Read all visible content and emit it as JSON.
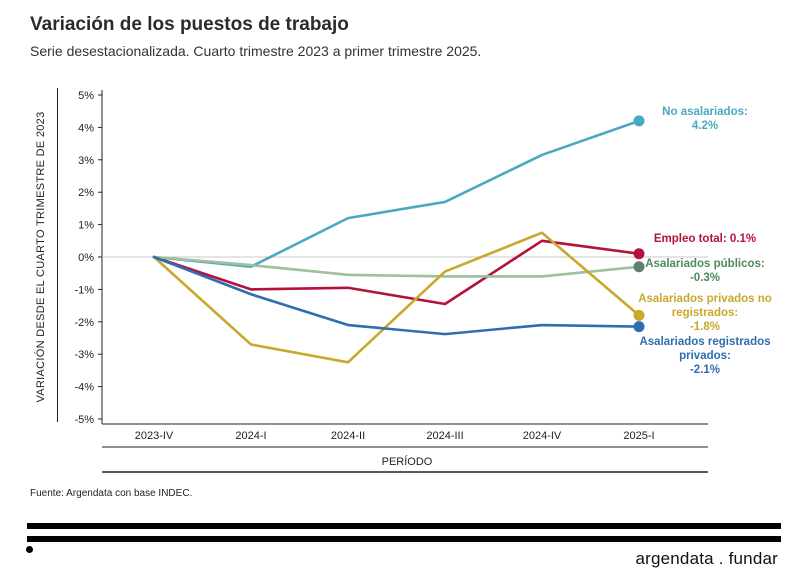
{
  "title": "Variación de los puestos de trabajo",
  "subtitle": "Serie desestacionalizada. Cuarto trimestre 2023 a primer trimestre 2025.",
  "source": "Fuente: Argendata con base INDEC.",
  "brand": "argendata . fundar",
  "chart_data": {
    "type": "line",
    "xlabel": "PERÍODO",
    "ylabel": "VARIACIÓN DESDE EL CUARTO TRIMESTRE DE 2023",
    "categories": [
      "2023-IV",
      "2024-I",
      "2024-II",
      "2024-III",
      "2024-IV",
      "2025-I"
    ],
    "ylim": [
      -5,
      5
    ],
    "yticks": [
      5,
      4,
      3,
      2,
      1,
      0,
      -1,
      -2,
      -3,
      -4,
      -5
    ],
    "ytick_labels": [
      "5%",
      "4%",
      "3%",
      "2%",
      "1%",
      "0%",
      "-1%",
      "-2%",
      "-3%",
      "-4%",
      "-5%"
    ],
    "grid": false,
    "series": [
      {
        "name": "No asalariados",
        "label_lines": [
          "No asalariados:",
          "4.2%"
        ],
        "color": "#4aa8c0",
        "values": [
          0,
          -0.3,
          1.2,
          1.7,
          3.15,
          4.2
        ]
      },
      {
        "name": "Empleo total",
        "label_lines": [
          "Empleo total: 0.1%"
        ],
        "color": "#b5123a",
        "values": [
          0,
          -1.0,
          -0.95,
          -1.45,
          0.5,
          0.1
        ]
      },
      {
        "name": "Asalariados públicos",
        "label_lines": [
          "Asalariados públicos:",
          "-0.3%"
        ],
        "color": "#9fbf9f",
        "label_color": "#4e8a5e",
        "dot_color": "#5f7f6c",
        "values": [
          0,
          -0.25,
          -0.55,
          -0.6,
          -0.6,
          -0.3
        ]
      },
      {
        "name": "Asalariados privados no registrados",
        "label_lines": [
          "Asalariados privados no",
          "registrados:",
          "-1.8%"
        ],
        "color": "#c9a82c",
        "values": [
          0,
          -2.7,
          -3.25,
          -0.45,
          0.75,
          -1.8
        ]
      },
      {
        "name": "Asalariados registrados privados",
        "label_lines": [
          "Asalariados registrados",
          "privados:",
          "-2.1%"
        ],
        "color": "#2e6db0",
        "values": [
          0,
          -1.15,
          -2.1,
          -2.38,
          -2.1,
          -2.15
        ]
      }
    ]
  }
}
